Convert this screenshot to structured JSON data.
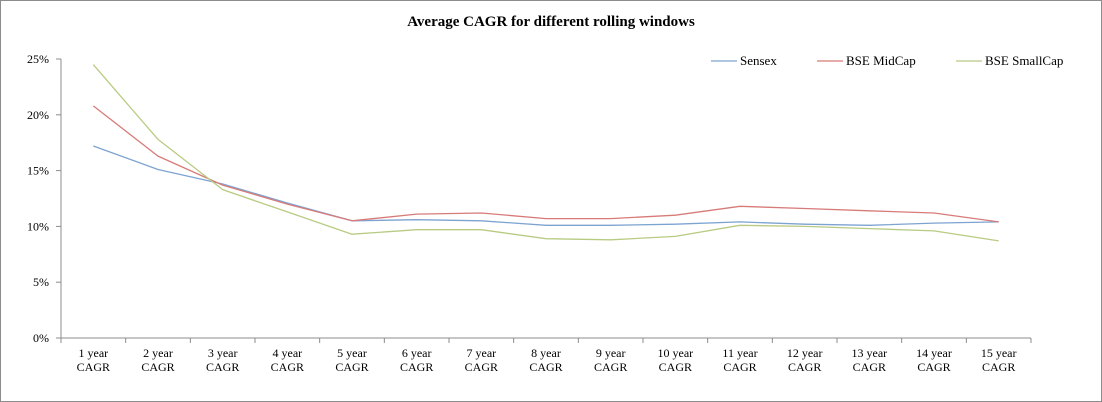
{
  "chart_data": {
    "type": "line",
    "title": "Average CAGR for different rolling windows",
    "xlabel": "",
    "ylabel": "",
    "categories": [
      [
        "1 year",
        "CAGR"
      ],
      [
        "2 year",
        "CAGR"
      ],
      [
        "3 year",
        "CAGR"
      ],
      [
        "4 year",
        "CAGR"
      ],
      [
        "5 year",
        "CAGR"
      ],
      [
        "6 year",
        "CAGR"
      ],
      [
        "7 year",
        "CAGR"
      ],
      [
        "8 year",
        "CAGR"
      ],
      [
        "9 year",
        "CAGR"
      ],
      [
        "10 year",
        "CAGR"
      ],
      [
        "11 year",
        "CAGR"
      ],
      [
        "12 year",
        "CAGR"
      ],
      [
        "13 year",
        "CAGR"
      ],
      [
        "14 year",
        "CAGR"
      ],
      [
        "15 year",
        "CAGR"
      ]
    ],
    "ylim": [
      0,
      25
    ],
    "yticks": [
      0,
      5,
      10,
      15,
      20,
      25
    ],
    "ytick_labels": [
      "0%",
      "5%",
      "10%",
      "15%",
      "20%",
      "25%"
    ],
    "grid": false,
    "legend_position": "top-right",
    "series": [
      {
        "name": "Sensex",
        "color": "#7da3d1",
        "values": [
          17.2,
          15.1,
          13.8,
          12.1,
          10.5,
          10.6,
          10.5,
          10.1,
          10.1,
          10.2,
          10.4,
          10.2,
          10.1,
          10.3,
          10.4
        ]
      },
      {
        "name": "BSE MidCap",
        "color": "#d77b78",
        "values": [
          20.8,
          16.3,
          13.7,
          12.0,
          10.5,
          11.1,
          11.2,
          10.7,
          10.7,
          11.0,
          11.8,
          11.6,
          11.4,
          11.2,
          10.4
        ]
      },
      {
        "name": "BSE SmallCap",
        "color": "#b8cb82",
        "values": [
          24.5,
          17.8,
          13.3,
          11.3,
          9.3,
          9.7,
          9.7,
          8.9,
          8.8,
          9.1,
          10.1,
          10.0,
          9.8,
          9.6,
          8.7
        ]
      }
    ]
  }
}
